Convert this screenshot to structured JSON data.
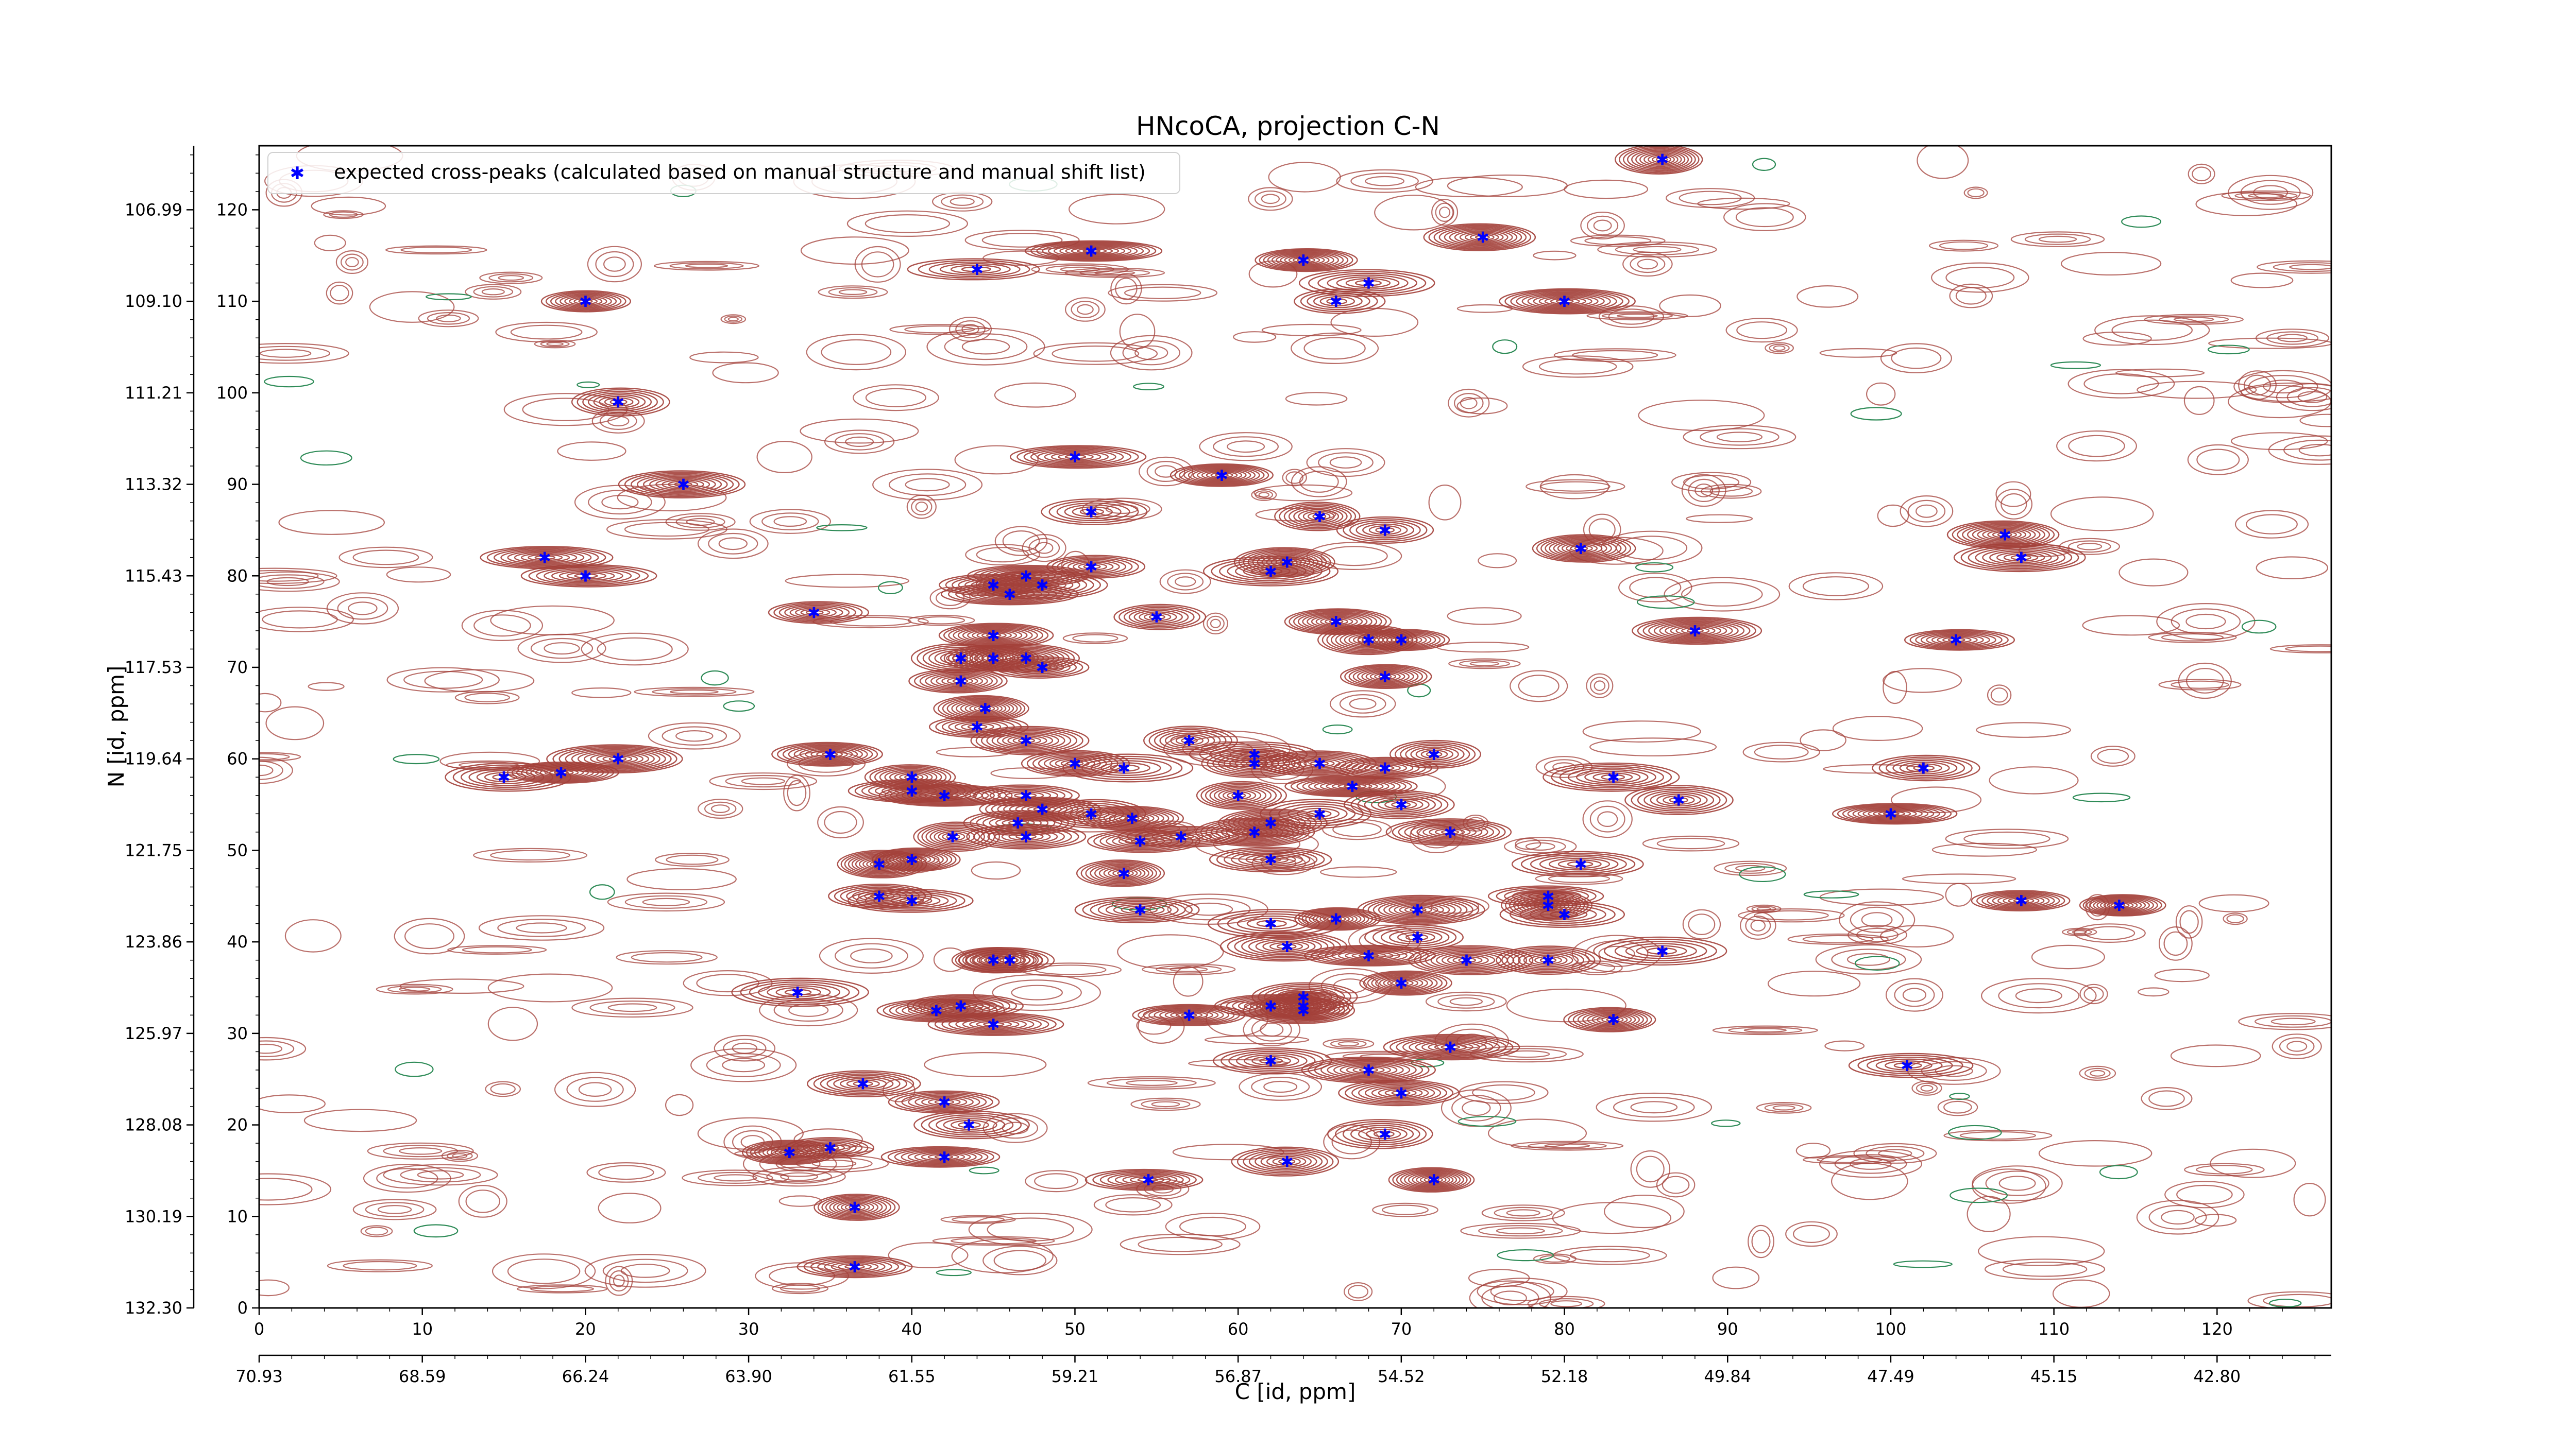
{
  "chart_data": {
    "type": "scatter",
    "title": "HNcoCA, projection C-N",
    "xlabel": "C [id, ppm]",
    "ylabel": "N [id, ppm]",
    "xlim": [
      0,
      127
    ],
    "ylim": [
      0,
      127
    ],
    "x_ticks": [
      0,
      10,
      20,
      30,
      40,
      50,
      60,
      70,
      80,
      90,
      100,
      110,
      120
    ],
    "y_ticks": [
      0,
      10,
      20,
      30,
      40,
      50,
      60,
      70,
      80,
      90,
      100,
      110,
      120
    ],
    "x_ppm_ticks": [
      {
        "pos": 0,
        "label": "70.93"
      },
      {
        "pos": 10,
        "label": "68.59"
      },
      {
        "pos": 20,
        "label": "66.24"
      },
      {
        "pos": 30,
        "label": "63.90"
      },
      {
        "pos": 40,
        "label": "61.55"
      },
      {
        "pos": 50,
        "label": "59.21"
      },
      {
        "pos": 60,
        "label": "56.87"
      },
      {
        "pos": 70,
        "label": "54.52"
      },
      {
        "pos": 80,
        "label": "52.18"
      },
      {
        "pos": 90,
        "label": "49.84"
      },
      {
        "pos": 100,
        "label": "47.49"
      },
      {
        "pos": 110,
        "label": "45.15"
      },
      {
        "pos": 120,
        "label": "42.80"
      }
    ],
    "y_ppm_ticks": [
      {
        "pos": 0,
        "label": "132.30"
      },
      {
        "pos": 10,
        "label": "130.19"
      },
      {
        "pos": 20,
        "label": "128.08"
      },
      {
        "pos": 30,
        "label": "125.97"
      },
      {
        "pos": 40,
        "label": "123.86"
      },
      {
        "pos": 50,
        "label": "121.75"
      },
      {
        "pos": 60,
        "label": "119.64"
      },
      {
        "pos": 70,
        "label": "117.53"
      },
      {
        "pos": 80,
        "label": "115.43"
      },
      {
        "pos": 90,
        "label": "113.32"
      },
      {
        "pos": 100,
        "label": "111.21"
      },
      {
        "pos": 110,
        "label": "109.10"
      },
      {
        "pos": 120,
        "label": "106.99"
      }
    ],
    "legend": {
      "location": "top-left",
      "label": "expected cross-peaks (calculated based on manual structure and manual shift list)"
    },
    "colors": {
      "peaks": "#0000ff",
      "contour_positive": "#a3403a",
      "contour_negative": "#2e8b57"
    },
    "series": [
      {
        "name": "expected cross-peaks (calculated based on manual structure and manual shift list)",
        "points": [
          [
            86,
            125.5
          ],
          [
            44,
            113.5
          ],
          [
            51,
            115.5
          ],
          [
            64,
            114.5
          ],
          [
            68,
            112
          ],
          [
            66,
            110
          ],
          [
            75,
            117
          ],
          [
            80,
            110
          ],
          [
            20,
            110
          ],
          [
            22,
            99
          ],
          [
            26,
            90
          ],
          [
            17.5,
            82
          ],
          [
            20,
            80
          ],
          [
            34,
            76
          ],
          [
            45,
            79
          ],
          [
            46,
            78
          ],
          [
            47,
            80
          ],
          [
            48,
            79
          ],
          [
            51,
            81
          ],
          [
            55,
            75.5
          ],
          [
            59,
            91
          ],
          [
            50,
            93
          ],
          [
            51,
            87
          ],
          [
            62,
            80.5
          ],
          [
            63,
            81.5
          ],
          [
            65,
            86.5
          ],
          [
            69,
            85
          ],
          [
            81,
            83
          ],
          [
            88,
            74
          ],
          [
            107,
            84.5
          ],
          [
            108,
            82
          ],
          [
            104,
            73
          ],
          [
            66,
            75
          ],
          [
            68,
            73
          ],
          [
            70,
            73
          ],
          [
            69,
            69
          ],
          [
            43,
            71
          ],
          [
            45,
            71
          ],
          [
            45,
            73.5
          ],
          [
            47,
            71
          ],
          [
            48,
            70
          ],
          [
            43,
            68.5
          ],
          [
            44,
            63.5
          ],
          [
            44.5,
            65.5
          ],
          [
            47,
            62
          ],
          [
            53,
            59
          ],
          [
            50,
            59.5
          ],
          [
            57,
            62
          ],
          [
            61,
            60.5
          ],
          [
            61,
            59.5
          ],
          [
            60,
            56
          ],
          [
            65,
            59.5
          ],
          [
            67,
            57
          ],
          [
            69,
            59
          ],
          [
            72,
            60.5
          ],
          [
            83,
            58
          ],
          [
            87,
            55.5
          ],
          [
            102,
            59
          ],
          [
            100,
            54
          ],
          [
            35,
            60.5
          ],
          [
            15,
            58
          ],
          [
            18.5,
            58.5
          ],
          [
            22,
            60
          ],
          [
            40,
            58
          ],
          [
            40,
            56.5
          ],
          [
            42,
            56
          ],
          [
            47,
            56
          ],
          [
            48,
            54.5
          ],
          [
            46.5,
            53
          ],
          [
            51,
            54
          ],
          [
            53.5,
            53.5
          ],
          [
            42.5,
            51.5
          ],
          [
            47,
            51.5
          ],
          [
            54,
            51
          ],
          [
            56.5,
            51.5
          ],
          [
            61,
            52
          ],
          [
            62,
            53
          ],
          [
            65,
            54
          ],
          [
            70,
            55
          ],
          [
            73,
            52
          ],
          [
            38,
            48.5
          ],
          [
            40,
            49
          ],
          [
            53,
            47.5
          ],
          [
            54,
            43.5
          ],
          [
            38,
            45
          ],
          [
            40,
            44.5
          ],
          [
            62,
            49
          ],
          [
            79,
            45
          ],
          [
            81,
            48.5
          ],
          [
            79,
            44
          ],
          [
            80,
            43
          ],
          [
            86,
            39
          ],
          [
            62,
            42
          ],
          [
            66,
            42.5
          ],
          [
            68,
            38.5
          ],
          [
            71,
            43.5
          ],
          [
            71,
            40.5
          ],
          [
            70,
            35.5
          ],
          [
            74,
            38
          ],
          [
            79,
            38
          ],
          [
            108,
            44.5
          ],
          [
            114,
            44
          ],
          [
            63,
            39.5
          ],
          [
            45,
            38
          ],
          [
            46,
            38
          ],
          [
            33,
            34.5
          ],
          [
            41.5,
            32.5
          ],
          [
            43,
            33
          ],
          [
            45,
            31
          ],
          [
            57,
            32
          ],
          [
            62,
            33
          ],
          [
            64,
            33
          ],
          [
            64,
            34
          ],
          [
            64,
            32.5
          ],
          [
            83,
            31.5
          ],
          [
            73,
            28.5
          ],
          [
            62,
            27
          ],
          [
            68,
            26
          ],
          [
            70,
            23.5
          ],
          [
            101,
            26.5
          ],
          [
            37,
            24.5
          ],
          [
            42,
            22.5
          ],
          [
            43.5,
            20
          ],
          [
            42,
            16.5
          ],
          [
            32.5,
            17
          ],
          [
            35,
            17.5
          ],
          [
            69,
            19
          ],
          [
            63,
            16
          ],
          [
            72,
            14
          ],
          [
            54.5,
            14
          ],
          [
            36.5,
            11
          ],
          [
            36.5,
            4.5
          ]
        ]
      }
    ]
  }
}
